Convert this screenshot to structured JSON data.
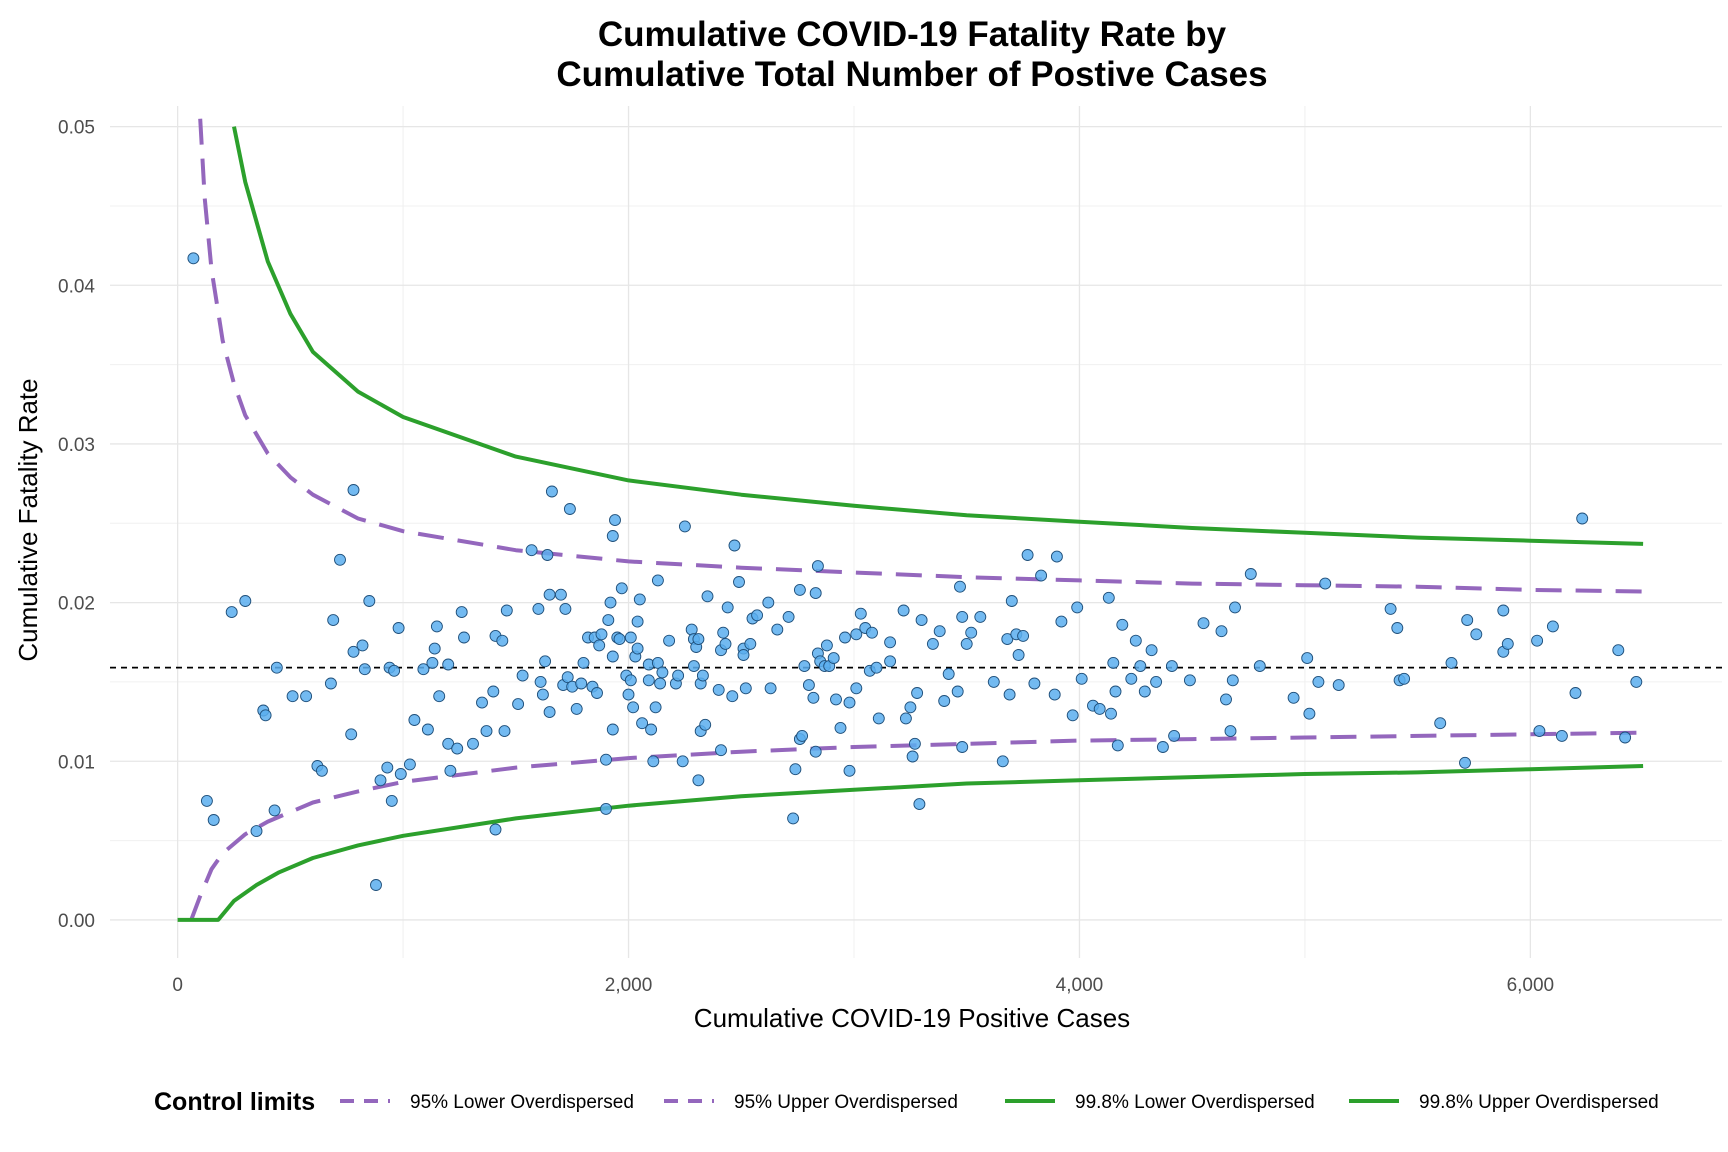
{
  "chart_data": {
    "type": "scatter",
    "title_lines": [
      "Cumulative COVID-19 Fatality Rate by",
      "Cumulative Total Number of Postive Cases"
    ],
    "xlabel": "Cumulative COVID-19 Positive Cases",
    "ylabel": "Cumulative Fatality Rate",
    "xlim": [
      -300,
      6850
    ],
    "ylim": [
      -0.0024,
      0.0513
    ],
    "grid": true,
    "x_ticks": [
      0,
      2000,
      4000,
      6000
    ],
    "x_tick_labels": [
      "0",
      "2,000",
      "4,000",
      "6,000"
    ],
    "y_ticks": [
      0.0,
      0.01,
      0.02,
      0.03,
      0.04,
      0.05
    ],
    "y_tick_labels": [
      "0.00",
      "0.01",
      "0.02",
      "0.03",
      "0.04",
      "0.05"
    ],
    "reference_line": {
      "y": 0.0159,
      "style": "dashed",
      "color": "#000000"
    },
    "points_color": "#5aaeee",
    "legend": {
      "position": "bottom",
      "title": "Control limits",
      "entries": [
        {
          "label": "95% Lower Overdispersed",
          "color": "#9467bd",
          "style": "dashed"
        },
        {
          "label": "95% Upper Overdispersed",
          "color": "#9467bd",
          "style": "dashed"
        },
        {
          "label": "99.8% Lower Overdispersed",
          "color": "#2ca02c",
          "style": "solid"
        },
        {
          "label": "99.8% Upper Overdispersed",
          "color": "#2ca02c",
          "style": "solid"
        }
      ]
    },
    "limit_series": [
      {
        "name": "95% Lower Overdispersed",
        "color": "#9467bd",
        "style": "dashed",
        "x": [
          60,
          100,
          150,
          200,
          300,
          400,
          600,
          800,
          1000,
          1500,
          2000,
          2500,
          3000,
          3500,
          4000,
          4500,
          5000,
          5500,
          6000,
          6500
        ],
        "y": [
          0.0,
          0.0015,
          0.0032,
          0.0042,
          0.0054,
          0.0062,
          0.0074,
          0.0081,
          0.0087,
          0.0096,
          0.0102,
          0.0106,
          0.0109,
          0.0111,
          0.0113,
          0.0114,
          0.0115,
          0.0116,
          0.0117,
          0.0118
        ]
      },
      {
        "name": "95% Upper Overdispersed",
        "color": "#9467bd",
        "style": "dashed",
        "x": [
          100,
          120,
          150,
          200,
          250,
          300,
          400,
          500,
          600,
          800,
          1000,
          1500,
          2000,
          2500,
          3000,
          3500,
          4000,
          4500,
          5000,
          5500,
          6000,
          6500
        ],
        "y": [
          0.0505,
          0.0455,
          0.041,
          0.0365,
          0.0338,
          0.0318,
          0.0294,
          0.0279,
          0.0268,
          0.0253,
          0.0245,
          0.0233,
          0.0226,
          0.0222,
          0.0219,
          0.0216,
          0.0214,
          0.0212,
          0.0211,
          0.021,
          0.0208,
          0.0207
        ]
      },
      {
        "name": "99.8% Lower Overdispersed",
        "color": "#2ca02c",
        "style": "solid",
        "x": [
          0,
          180,
          250,
          350,
          450,
          600,
          800,
          1000,
          1500,
          2000,
          2500,
          3000,
          3500,
          4000,
          4500,
          5000,
          5500,
          6000,
          6500
        ],
        "y": [
          0.0,
          0.0,
          0.0012,
          0.0022,
          0.003,
          0.0039,
          0.0047,
          0.0053,
          0.0064,
          0.0072,
          0.0078,
          0.0082,
          0.0086,
          0.0088,
          0.009,
          0.0092,
          0.0093,
          0.0095,
          0.0097
        ]
      },
      {
        "name": "99.8% Upper Overdispersed",
        "color": "#2ca02c",
        "style": "solid",
        "x": [
          250,
          300,
          400,
          500,
          600,
          800,
          1000,
          1500,
          2000,
          2500,
          3000,
          3500,
          4000,
          4500,
          5000,
          5500,
          6000,
          6500
        ],
        "y": [
          0.05,
          0.0465,
          0.0415,
          0.0382,
          0.0358,
          0.0333,
          0.0317,
          0.0292,
          0.0277,
          0.0268,
          0.0261,
          0.0255,
          0.0251,
          0.0247,
          0.0244,
          0.0241,
          0.0239,
          0.0237
        ]
      }
    ],
    "points": [
      [
        70,
        0.0417
      ],
      [
        130,
        0.0075
      ],
      [
        160,
        0.0063
      ],
      [
        240,
        0.0194
      ],
      [
        300,
        0.0201
      ],
      [
        350,
        0.0056
      ],
      [
        380,
        0.0132
      ],
      [
        390,
        0.0129
      ],
      [
        430,
        0.0069
      ],
      [
        440,
        0.0159
      ],
      [
        510,
        0.0141
      ],
      [
        570,
        0.0141
      ],
      [
        620,
        0.0097
      ],
      [
        640,
        0.0094
      ],
      [
        680,
        0.0149
      ],
      [
        690,
        0.0189
      ],
      [
        720,
        0.0227
      ],
      [
        770,
        0.0117
      ],
      [
        780,
        0.0169
      ],
      [
        780,
        0.0271
      ],
      [
        820,
        0.0173
      ],
      [
        830,
        0.0158
      ],
      [
        850,
        0.0201
      ],
      [
        880,
        0.0022
      ],
      [
        900,
        0.0088
      ],
      [
        930,
        0.0096
      ],
      [
        940,
        0.0159
      ],
      [
        950,
        0.0075
      ],
      [
        960,
        0.0157
      ],
      [
        980,
        0.0184
      ],
      [
        990,
        0.0092
      ],
      [
        1030,
        0.0098
      ],
      [
        1050,
        0.0126
      ],
      [
        1090,
        0.0158
      ],
      [
        1110,
        0.012
      ],
      [
        1130,
        0.0162
      ],
      [
        1140,
        0.0171
      ],
      [
        1150,
        0.0185
      ],
      [
        1160,
        0.0141
      ],
      [
        1200,
        0.0111
      ],
      [
        1200,
        0.0161
      ],
      [
        1210,
        0.0094
      ],
      [
        1240,
        0.0108
      ],
      [
        1260,
        0.0194
      ],
      [
        1270,
        0.0178
      ],
      [
        1310,
        0.0111
      ],
      [
        1350,
        0.0137
      ],
      [
        1370,
        0.0119
      ],
      [
        1400,
        0.0144
      ],
      [
        1410,
        0.0179
      ],
      [
        1410,
        0.0057
      ],
      [
        1440,
        0.0176
      ],
      [
        1450,
        0.0119
      ],
      [
        1460,
        0.0195
      ],
      [
        1510,
        0.0136
      ],
      [
        1530,
        0.0154
      ],
      [
        1570,
        0.0233
      ],
      [
        1600,
        0.0196
      ],
      [
        1610,
        0.015
      ],
      [
        1620,
        0.0142
      ],
      [
        1630,
        0.0163
      ],
      [
        1640,
        0.023
      ],
      [
        1650,
        0.0205
      ],
      [
        1650,
        0.0131
      ],
      [
        1660,
        0.027
      ],
      [
        1700,
        0.0205
      ],
      [
        1710,
        0.0148
      ],
      [
        1720,
        0.0196
      ],
      [
        1730,
        0.0153
      ],
      [
        1740,
        0.0259
      ],
      [
        1750,
        0.0147
      ],
      [
        1770,
        0.0133
      ],
      [
        1790,
        0.0149
      ],
      [
        1800,
        0.0162
      ],
      [
        1820,
        0.0178
      ],
      [
        1840,
        0.0147
      ],
      [
        1850,
        0.0178
      ],
      [
        1860,
        0.0143
      ],
      [
        1870,
        0.0173
      ],
      [
        1880,
        0.018
      ],
      [
        1900,
        0.007
      ],
      [
        1900,
        0.0101
      ],
      [
        1910,
        0.0189
      ],
      [
        1920,
        0.02
      ],
      [
        1930,
        0.012
      ],
      [
        1930,
        0.0166
      ],
      [
        1930,
        0.0242
      ],
      [
        1940,
        0.0252
      ],
      [
        1950,
        0.0178
      ],
      [
        1960,
        0.0177
      ],
      [
        1970,
        0.0209
      ],
      [
        1990,
        0.0154
      ],
      [
        2000,
        0.0142
      ],
      [
        2010,
        0.0178
      ],
      [
        2010,
        0.0151
      ],
      [
        2020,
        0.0134
      ],
      [
        2030,
        0.0166
      ],
      [
        2040,
        0.0188
      ],
      [
        2040,
        0.0171
      ],
      [
        2050,
        0.0202
      ],
      [
        2060,
        0.0124
      ],
      [
        2090,
        0.0151
      ],
      [
        2090,
        0.0161
      ],
      [
        2100,
        0.012
      ],
      [
        2110,
        0.01
      ],
      [
        2120,
        0.0134
      ],
      [
        2130,
        0.0214
      ],
      [
        2130,
        0.0162
      ],
      [
        2140,
        0.0149
      ],
      [
        2150,
        0.0156
      ],
      [
        2180,
        0.0176
      ],
      [
        2210,
        0.0149
      ],
      [
        2220,
        0.0154
      ],
      [
        2240,
        0.01
      ],
      [
        2250,
        0.0248
      ],
      [
        2280,
        0.0183
      ],
      [
        2290,
        0.0177
      ],
      [
        2290,
        0.016
      ],
      [
        2300,
        0.0172
      ],
      [
        2310,
        0.0177
      ],
      [
        2310,
        0.0088
      ],
      [
        2320,
        0.0119
      ],
      [
        2320,
        0.0149
      ],
      [
        2330,
        0.0154
      ],
      [
        2340,
        0.0123
      ],
      [
        2350,
        0.0204
      ],
      [
        2400,
        0.0145
      ],
      [
        2410,
        0.0107
      ],
      [
        2410,
        0.017
      ],
      [
        2420,
        0.0181
      ],
      [
        2430,
        0.0174
      ],
      [
        2440,
        0.0197
      ],
      [
        2460,
        0.0141
      ],
      [
        2470,
        0.0236
      ],
      [
        2490,
        0.0213
      ],
      [
        2510,
        0.0171
      ],
      [
        2510,
        0.0167
      ],
      [
        2520,
        0.0146
      ],
      [
        2540,
        0.0174
      ],
      [
        2550,
        0.019
      ],
      [
        2570,
        0.0192
      ],
      [
        2620,
        0.02
      ],
      [
        2630,
        0.0146
      ],
      [
        2660,
        0.0183
      ],
      [
        2710,
        0.0191
      ],
      [
        2730,
        0.0064
      ],
      [
        2740,
        0.0095
      ],
      [
        2760,
        0.0208
      ],
      [
        2760,
        0.0114
      ],
      [
        2770,
        0.0116
      ],
      [
        2780,
        0.016
      ],
      [
        2800,
        0.0148
      ],
      [
        2820,
        0.014
      ],
      [
        2830,
        0.0106
      ],
      [
        2830,
        0.0206
      ],
      [
        2840,
        0.0168
      ],
      [
        2840,
        0.0223
      ],
      [
        2850,
        0.0163
      ],
      [
        2870,
        0.016
      ],
      [
        2880,
        0.0173
      ],
      [
        2890,
        0.016
      ],
      [
        2910,
        0.0165
      ],
      [
        2920,
        0.0139
      ],
      [
        2940,
        0.0121
      ],
      [
        2960,
        0.0178
      ],
      [
        2980,
        0.0137
      ],
      [
        2980,
        0.0094
      ],
      [
        3010,
        0.018
      ],
      [
        3010,
        0.0146
      ],
      [
        3030,
        0.0193
      ],
      [
        3050,
        0.0184
      ],
      [
        3070,
        0.0157
      ],
      [
        3080,
        0.0181
      ],
      [
        3100,
        0.0159
      ],
      [
        3110,
        0.0127
      ],
      [
        3160,
        0.0163
      ],
      [
        3160,
        0.0175
      ],
      [
        3220,
        0.0195
      ],
      [
        3230,
        0.0127
      ],
      [
        3250,
        0.0134
      ],
      [
        3260,
        0.0103
      ],
      [
        3270,
        0.0111
      ],
      [
        3280,
        0.0143
      ],
      [
        3290,
        0.0073
      ],
      [
        3300,
        0.0189
      ],
      [
        3350,
        0.0174
      ],
      [
        3380,
        0.0182
      ],
      [
        3400,
        0.0138
      ],
      [
        3420,
        0.0155
      ],
      [
        3460,
        0.0144
      ],
      [
        3470,
        0.021
      ],
      [
        3480,
        0.0191
      ],
      [
        3480,
        0.0109
      ],
      [
        3500,
        0.0174
      ],
      [
        3520,
        0.0181
      ],
      [
        3560,
        0.0191
      ],
      [
        3620,
        0.015
      ],
      [
        3660,
        0.01
      ],
      [
        3680,
        0.0177
      ],
      [
        3690,
        0.0142
      ],
      [
        3700,
        0.0201
      ],
      [
        3720,
        0.018
      ],
      [
        3730,
        0.0167
      ],
      [
        3750,
        0.0179
      ],
      [
        3770,
        0.023
      ],
      [
        3800,
        0.0149
      ],
      [
        3830,
        0.0217
      ],
      [
        3890,
        0.0142
      ],
      [
        3900,
        0.0229
      ],
      [
        3920,
        0.0188
      ],
      [
        3970,
        0.0129
      ],
      [
        3990,
        0.0197
      ],
      [
        4010,
        0.0152
      ],
      [
        4060,
        0.0135
      ],
      [
        4090,
        0.0133
      ],
      [
        4130,
        0.0203
      ],
      [
        4140,
        0.013
      ],
      [
        4150,
        0.0162
      ],
      [
        4160,
        0.0144
      ],
      [
        4170,
        0.011
      ],
      [
        4190,
        0.0186
      ],
      [
        4230,
        0.0152
      ],
      [
        4250,
        0.0176
      ],
      [
        4270,
        0.016
      ],
      [
        4290,
        0.0144
      ],
      [
        4320,
        0.017
      ],
      [
        4340,
        0.015
      ],
      [
        4370,
        0.0109
      ],
      [
        4410,
        0.016
      ],
      [
        4420,
        0.0116
      ],
      [
        4490,
        0.0151
      ],
      [
        4550,
        0.0187
      ],
      [
        4630,
        0.0182
      ],
      [
        4650,
        0.0139
      ],
      [
        4670,
        0.0119
      ],
      [
        4680,
        0.0151
      ],
      [
        4690,
        0.0197
      ],
      [
        4760,
        0.0218
      ],
      [
        4800,
        0.016
      ],
      [
        4950,
        0.014
      ],
      [
        5010,
        0.0165
      ],
      [
        5020,
        0.013
      ],
      [
        5060,
        0.015
      ],
      [
        5090,
        0.0212
      ],
      [
        5150,
        0.0148
      ],
      [
        5410,
        0.0184
      ],
      [
        5420,
        0.0151
      ],
      [
        5440,
        0.0152
      ],
      [
        5600,
        0.0124
      ],
      [
        5650,
        0.0162
      ],
      [
        5710,
        0.0099
      ],
      [
        5720,
        0.0189
      ],
      [
        5760,
        0.018
      ],
      [
        5880,
        0.0195
      ],
      [
        5880,
        0.0169
      ],
      [
        5900,
        0.0174
      ],
      [
        6030,
        0.0176
      ],
      [
        6040,
        0.0119
      ],
      [
        6100,
        0.0185
      ],
      [
        6140,
        0.0116
      ],
      [
        6390,
        0.017
      ],
      [
        6420,
        0.0115
      ],
      [
        6470,
        0.015
      ],
      [
        6200,
        0.0143
      ],
      [
        6230,
        0.0253
      ],
      [
        5380,
        0.0196
      ]
    ]
  }
}
